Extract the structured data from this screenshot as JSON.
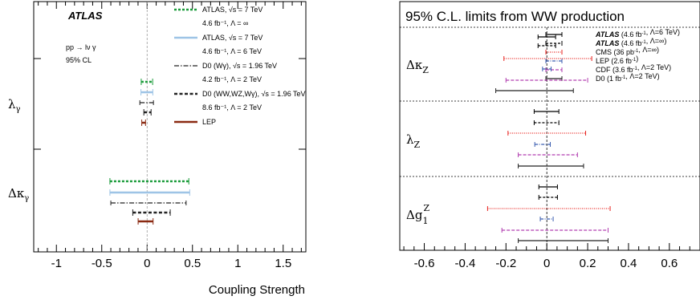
{
  "chart_data": [
    {
      "type": "errorbar",
      "x_label": "Coupling Strength",
      "xlim": [
        -1.25,
        1.75
      ],
      "x_ticks": [
        "-1",
        "-0.5",
        "0",
        "0.5",
        "1",
        "1.5"
      ],
      "x_tick_values": [
        -1,
        -0.5,
        0,
        0.5,
        1,
        1.5
      ],
      "brand": "ATLAS",
      "process_text": "pp → lν γ",
      "cl_text": "95% CL",
      "parameters": [
        {
          "label": "λγ",
          "label_main": "λ",
          "label_sub": "γ"
        },
        {
          "label": "Δκγ",
          "label_main": "Δκ",
          "label_sub": "γ"
        }
      ],
      "legend": [
        {
          "line1": "ATLAS, √s = 7 TeV",
          "line2": "4.6 fb⁻¹, Λ = ∞",
          "color": "#1a9b3a",
          "dash": "3,2",
          "width": 2.5
        },
        {
          "line1": "ATLAS, √s = 7 TeV",
          "line2": "4.6 fb⁻¹, Λ = 6 TeV",
          "color": "#9ec4e6",
          "dash": "",
          "width": 2.5
        },
        {
          "line1": "D0 (Wγ), √s = 1.96 TeV",
          "line2": "4.2 fb⁻¹, Λ = 2 TeV",
          "color": "#222222",
          "dash": "6,2,1.5,2",
          "width": 1.2
        },
        {
          "line1": "D0 (WW,WZ,Wγ), √s = 1.96 TeV",
          "line2": "8.6 fb⁻¹, Λ = 2 TeV",
          "color": "#222222",
          "dash": "4,2.5",
          "width": 2.5
        },
        {
          "line1": "LEP",
          "line2": "",
          "color": "#8b2a12",
          "dash": "",
          "width": 2.5
        }
      ],
      "series": [
        {
          "name": "ATLAS, √s = 7 TeV 4.6 fb⁻¹, Λ = ∞",
          "lambda_gamma": [
            -0.065,
            0.061
          ],
          "dkappa_gamma": [
            -0.41,
            0.46
          ]
        },
        {
          "name": "ATLAS, √s = 7 TeV 4.6 fb⁻¹, Λ = 6 TeV",
          "lambda_gamma": [
            -0.068,
            0.063
          ],
          "dkappa_gamma": [
            -0.41,
            0.47
          ]
        },
        {
          "name": "D0 (Wγ), √s = 1.96 TeV 4.2 fb⁻¹, Λ = 2 TeV",
          "lambda_gamma": [
            -0.08,
            0.07
          ],
          "dkappa_gamma": [
            -0.4,
            0.43
          ]
        },
        {
          "name": "D0 (WW,WZ,Wγ), √s = 1.96 TeV 8.6 fb⁻¹, Λ = 2 TeV",
          "lambda_gamma": [
            -0.036,
            0.044
          ],
          "dkappa_gamma": [
            -0.158,
            0.255
          ]
        },
        {
          "name": "LEP",
          "lambda_gamma": [
            -0.059,
            -0.017
          ],
          "dkappa_gamma": [
            -0.099,
            0.066
          ]
        }
      ]
    },
    {
      "type": "errorbar",
      "title": "95% C.L. limits from WW production",
      "xlim": [
        -0.72,
        0.75
      ],
      "x_ticks": [
        "-0.6",
        "-0.4",
        "-0.2",
        "0",
        "0.2",
        "0.4",
        "0.6"
      ],
      "x_tick_values": [
        -0.6,
        -0.4,
        -0.2,
        0,
        0.2,
        0.4,
        0.6
      ],
      "parameters": [
        {
          "label": "ΔκZ",
          "label_main": "Δκ",
          "label_sub": "Z",
          "label_sup": ""
        },
        {
          "label": "λZ",
          "label_main": "λ",
          "label_sub": "Z",
          "label_sup": ""
        },
        {
          "label": "Δg1Z",
          "label_main": "Δg",
          "label_sub": "1",
          "label_sup": "Z"
        }
      ],
      "legend": [
        {
          "parts": [
            {
              "t": "ATLAS",
              "b": true
            },
            {
              "t": " (4.6 fb"
            },
            {
              "t": "-1",
              "sup": true
            },
            {
              "t": ", Λ=6 TeV)"
            }
          ],
          "color": "#000000",
          "dash": "",
          "width": 1.2
        },
        {
          "parts": [
            {
              "t": "ATLAS",
              "b": true
            },
            {
              "t": " (4.6 fb"
            },
            {
              "t": "-1",
              "sup": true
            },
            {
              "t": ", Λ=∞)"
            }
          ],
          "color": "#000000",
          "dash": "3,2",
          "width": 1.2
        },
        {
          "parts": [
            {
              "t": "CMS (36 pb"
            },
            {
              "t": "-1",
              "sup": true
            },
            {
              "t": ", Λ=∞)"
            }
          ],
          "color": "#e8231f",
          "dash": "1,1.5",
          "width": 1.2
        },
        {
          "parts": [
            {
              "t": "LEP (2.6 fb"
            },
            {
              "t": "-1",
              "sup": true
            },
            {
              "t": ")"
            }
          ],
          "color": "#3b5db0",
          "dash": "4,1.5,1,1.5",
          "width": 1.2
        },
        {
          "parts": [
            {
              "t": "CDF (3.6 fb"
            },
            {
              "t": "-1",
              "sup": true
            },
            {
              "t": ", Λ=2 TeV)"
            }
          ],
          "color": "#b23fb0",
          "dash": "4,2",
          "width": 1.2
        },
        {
          "parts": [
            {
              "t": "D0 (1 fb"
            },
            {
              "t": "-1",
              "sup": true
            },
            {
              "t": ", Λ=2 TeV)"
            }
          ],
          "color": "#222222",
          "dash": "",
          "width": 1.2
        }
      ],
      "series": [
        {
          "name": "ATLAS (4.6 fb-1, Λ=6 TeV)",
          "dkappa_z": [
            -0.043,
            0.043
          ],
          "lambda_z": [
            -0.062,
            0.059
          ],
          "dg1z": [
            -0.039,
            0.052
          ]
        },
        {
          "name": "ATLAS (4.6 fb-1, Λ=∞)",
          "dkappa_z": [
            -0.043,
            0.043
          ],
          "lambda_z": [
            -0.062,
            0.059
          ],
          "dg1z": [
            -0.039,
            0.052
          ]
        },
        {
          "name": "CMS (36 pb-1, Λ=∞)",
          "dkappa_z": [
            -0.21,
            0.22
          ],
          "lambda_z": [
            -0.19,
            0.19
          ],
          "dg1z": [
            -0.29,
            0.31
          ]
        },
        {
          "name": "LEP (2.6 fb-1)",
          "dkappa_z": [
            -0.021,
            0.021
          ],
          "lambda_z": [
            -0.059,
            0.017
          ],
          "dg1z": [
            -0.032,
            0.031
          ]
        },
        {
          "name": "CDF (3.6 fb-1, Λ=2 TeV)",
          "dkappa_z": [
            -0.2,
            0.2
          ],
          "lambda_z": [
            -0.14,
            0.15
          ],
          "dg1z": [
            -0.22,
            0.3
          ]
        },
        {
          "name": "D0 (1 fb-1, Λ=2 TeV)",
          "dkappa_z": [
            -0.25,
            0.13
          ],
          "lambda_z": [
            -0.14,
            0.18
          ],
          "dg1z": [
            -0.14,
            0.3
          ]
        }
      ]
    }
  ]
}
